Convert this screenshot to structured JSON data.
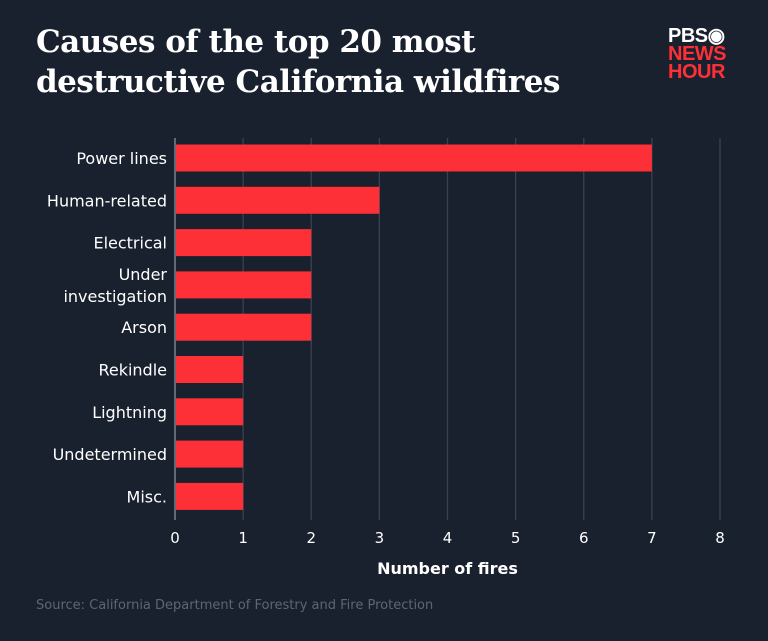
{
  "title_lines": [
    "Causes of the top 20 most",
    "destructive California wildfires"
  ],
  "logo": {
    "line1": "PBS",
    "line2": "NEWS",
    "line3": "HOUR"
  },
  "source": "Source: California Department of Forestry and Fire Protection",
  "colors": {
    "background": "#19202e",
    "bar": "#fc3036",
    "grid": "#3a4252"
  },
  "chart_data": {
    "type": "bar",
    "orientation": "horizontal",
    "title": "Causes of the top 20 most destructive California wildfires",
    "categories": [
      "Power lines",
      "Human-related",
      "Electrical",
      "Under investigation",
      "Arson",
      "Rekindle",
      "Lightning",
      "Undetermined",
      "Misc."
    ],
    "category_label_lines": [
      [
        "Power lines"
      ],
      [
        "Human-related"
      ],
      [
        "Electrical"
      ],
      [
        "Under",
        "investigation"
      ],
      [
        "Arson"
      ],
      [
        "Rekindle"
      ],
      [
        "Lightning"
      ],
      [
        "Undetermined"
      ],
      [
        "Misc."
      ]
    ],
    "values": [
      7,
      3,
      2,
      2,
      2,
      1,
      1,
      1,
      1
    ],
    "xlabel": "Number of fires",
    "ylabel": "",
    "xlim": [
      0,
      8
    ],
    "xticks": [
      "0",
      "1",
      "2",
      "3",
      "4",
      "5",
      "6",
      "7",
      "8"
    ],
    "grid": "vertical"
  }
}
